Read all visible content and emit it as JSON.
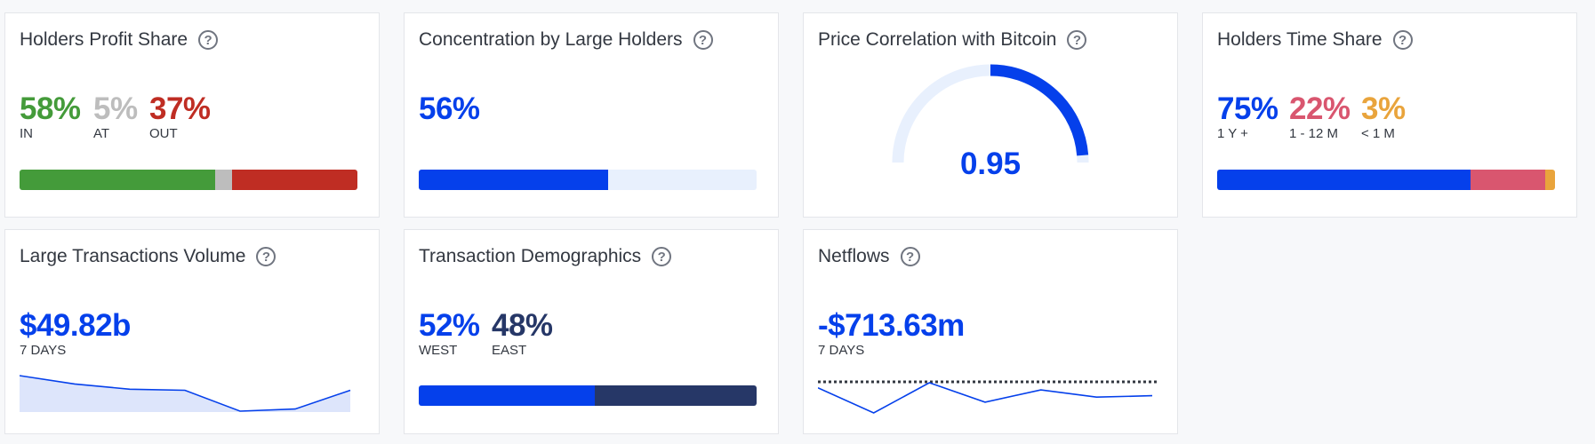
{
  "colors": {
    "green": "#449b3a",
    "gray": "#bdbdbd",
    "red": "#bf2d23",
    "blue": "#0540eb",
    "light_blue": "#e8f0fd",
    "navy": "#263767",
    "pink": "#d9566f",
    "orange": "#e9a43c",
    "spark_fill": "#dde5fb"
  },
  "profit": {
    "title": "Holders Profit Share",
    "in_value": "58%",
    "in_label": "IN",
    "at_value": "5%",
    "at_label": "AT",
    "out_value": "37%",
    "out_label": "OUT",
    "shares": [
      0.58,
      0.05,
      0.37
    ]
  },
  "concentration": {
    "title": "Concentration by Large Holders",
    "value": "56%",
    "share": 0.56
  },
  "correlation": {
    "title": "Price Correlation with Bitcoin",
    "value": "0.95",
    "level": 0.95
  },
  "time_share": {
    "title": "Holders Time Share",
    "long_value": "75%",
    "long_label": "1 Y +",
    "mid_value": "22%",
    "mid_label": "1 - 12 M",
    "short_value": "3%",
    "short_label": "< 1 M",
    "shares": [
      0.75,
      0.22,
      0.03
    ]
  },
  "large_tx": {
    "title": "Large Transactions Volume",
    "value": "$49.82b",
    "period": "7 DAYS",
    "trend": [
      36,
      28,
      23,
      22,
      2,
      4,
      22
    ]
  },
  "demographics": {
    "title": "Transaction Demographics",
    "west_value": "52%",
    "west_label": "WEST",
    "east_value": "48%",
    "east_label": "EAST",
    "shares": [
      0.52,
      0.48
    ]
  },
  "netflows": {
    "title": "Netflows",
    "value": "-$713.63m",
    "period": "7 DAYS",
    "trend": [
      -5,
      -40,
      2,
      -25,
      -8,
      -18,
      -16
    ]
  }
}
